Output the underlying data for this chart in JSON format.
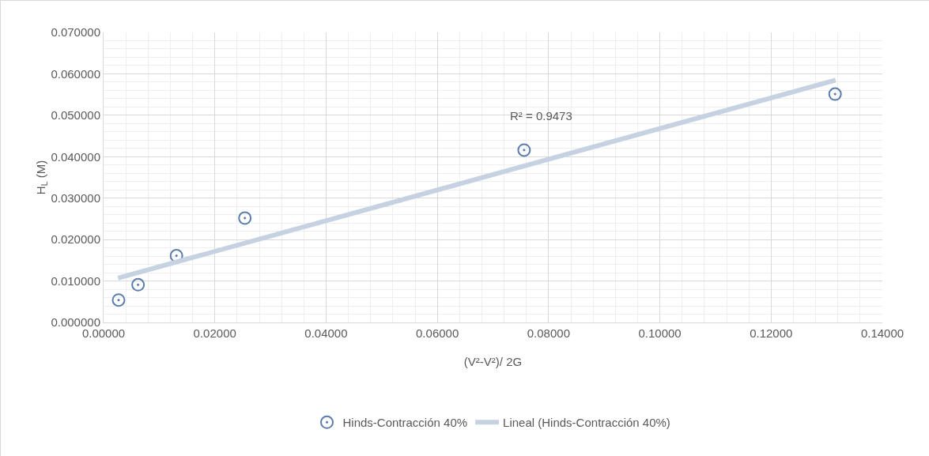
{
  "chart_data": {
    "type": "scatter",
    "xlabel": "(V²-V²)/ 2G",
    "ylabel": "H$_{L}$ (M)",
    "series": [
      {
        "name": "Hinds-Contracción 40%",
        "marker": "circle",
        "color": "#5b7cad",
        "x": [
          0.0027,
          0.0062,
          0.0131,
          0.0254,
          0.0756,
          0.1315
        ],
        "values": [
          0.0054,
          0.0091,
          0.0161,
          0.0252,
          0.0416,
          0.0551
        ]
      },
      {
        "name": "Lineal (Hinds-Contracción 40%)",
        "type": "line",
        "color": "#c6d2e1",
        "x": [
          0.0026,
          0.1316
        ],
        "values": [
          0.0107,
          0.0585
        ]
      }
    ],
    "annotations": [
      "R² = 0.9473"
    ],
    "xlim": [
      0,
      0.14
    ],
    "xticks": [
      {
        "value": 0,
        "label": "0.00000"
      },
      {
        "value": 0.02,
        "label": "0.02000"
      },
      {
        "value": 0.04,
        "label": "0.04000"
      },
      {
        "value": 0.06,
        "label": "0.06000"
      },
      {
        "value": 0.08,
        "label": "0.08000"
      },
      {
        "value": 0.1,
        "label": "0.10000"
      },
      {
        "value": 0.12,
        "label": "0.12000"
      },
      {
        "value": 0.14,
        "label": "0.14000"
      }
    ],
    "ylim": [
      0,
      0.07
    ],
    "yticks": [
      {
        "value": 0,
        "label": "0.000000"
      },
      {
        "value": 0.01,
        "label": "0.010000"
      },
      {
        "value": 0.02,
        "label": "0.020000"
      },
      {
        "value": 0.03,
        "label": "0.030000"
      },
      {
        "value": 0.04,
        "label": "0.040000"
      },
      {
        "value": 0.05,
        "label": "0.050000"
      },
      {
        "value": 0.06,
        "label": "0.060000"
      },
      {
        "value": 0.07,
        "label": "0.070000"
      }
    ],
    "grid": true,
    "legend": "bottom"
  }
}
